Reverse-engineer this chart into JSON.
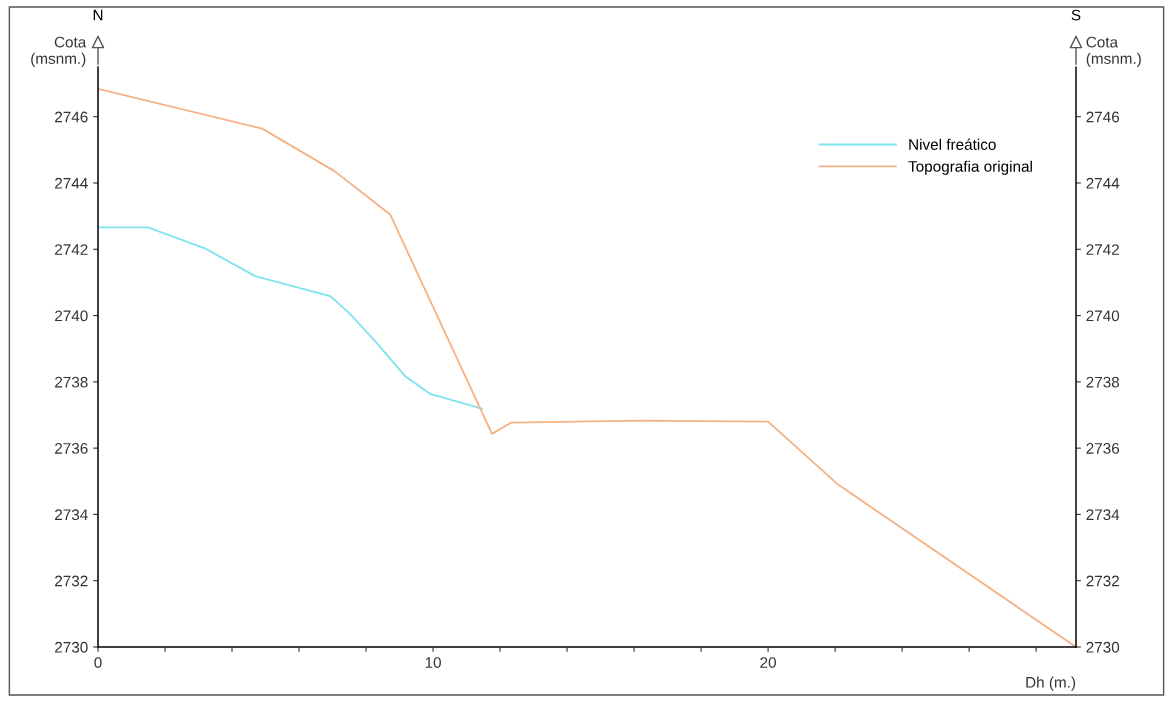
{
  "chart_data": {
    "type": "line",
    "ylabel": "Cota\n(msnm.)",
    "y2label": "Cota\n(msnm.)",
    "xlabel": "Dh (m.)",
    "annotations": [
      "N",
      "S"
    ],
    "series": [
      {
        "name": "Nivel freático",
        "color": "#7fe3ee",
        "x": [
          0,
          1.49,
          3.19,
          4.69,
          6.93,
          7.52,
          8.27,
          9.16,
          9.91,
          11.46
        ],
        "values": [
          2742.66,
          2742.66,
          2742.03,
          2741.19,
          2740.59,
          2740.05,
          2739.23,
          2738.18,
          2737.64,
          2737.19
        ]
      },
      {
        "name": "Topografia original",
        "color": "#f4b183",
        "x": [
          0,
          4.9,
          7.07,
          8.72,
          11.76,
          12.33,
          16.18,
          20,
          22.09,
          29.19
        ],
        "values": [
          2746.84,
          2745.64,
          2744.35,
          2743.05,
          2736.43,
          2736.77,
          2736.83,
          2736.8,
          2734.9,
          2730
        ]
      }
    ],
    "xlim": [
      0,
      29.19
    ],
    "xticks": [
      0,
      {
        "value": 2,
        "label": null
      },
      {
        "value": 4,
        "label": null
      },
      {
        "value": 6,
        "label": null
      },
      {
        "value": 8,
        "label": null
      },
      10,
      {
        "value": 12,
        "label": null
      },
      {
        "value": 14,
        "label": null
      },
      {
        "value": 16,
        "label": null
      },
      {
        "value": 18,
        "label": null
      },
      20,
      {
        "value": 22,
        "label": null
      },
      {
        "value": 24,
        "label": null
      },
      {
        "value": 26,
        "label": null
      },
      {
        "value": 28,
        "label": null
      }
    ],
    "ylim": [
      2730,
      2747.5
    ],
    "yticks": [
      2730,
      2732,
      2734,
      2736,
      2738,
      2740,
      2742,
      2744,
      2746
    ],
    "y2lim": [
      2730,
      2747.5
    ],
    "y2ticks": [
      2730,
      2732,
      2734,
      2736,
      2738,
      2740,
      2742,
      2744,
      2746
    ],
    "legend": "top right",
    "grid": false
  }
}
